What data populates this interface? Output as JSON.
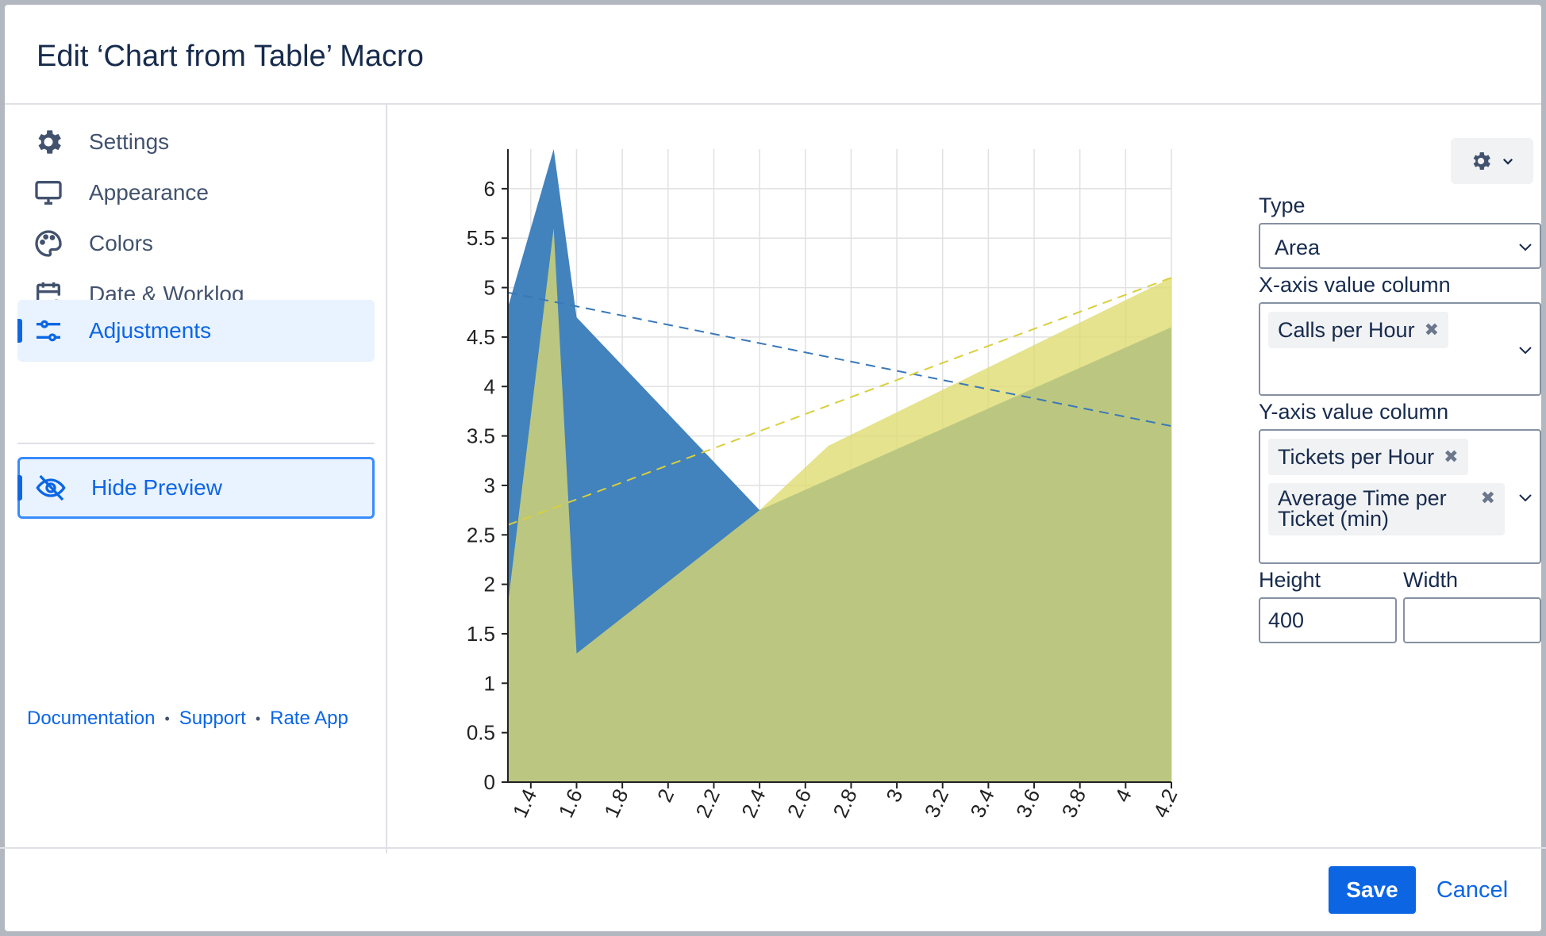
{
  "dialog": {
    "title": "Edit ‘Chart from Table’ Macro"
  },
  "sidebar": {
    "items": [
      {
        "label": "Settings",
        "icon": "gear-icon"
      },
      {
        "label": "Appearance",
        "icon": "monitor-icon"
      },
      {
        "label": "Colors",
        "icon": "palette-icon"
      },
      {
        "label": "Date & Worklog",
        "icon": "calendar-plus-icon"
      },
      {
        "label": "Adjustments",
        "icon": "sliders-icon",
        "active": true
      }
    ],
    "hide_preview": {
      "label": "Hide Preview",
      "icon": "eye-slash-icon"
    },
    "links": [
      "Documentation",
      "Support",
      "Rate App"
    ]
  },
  "panel": {
    "type_label": "Type",
    "type_value": "Area",
    "x_label": "X-axis value column",
    "x_tags": [
      "Calls per Hour"
    ],
    "y_label": "Y-axis value column",
    "y_tags": [
      "Tickets per Hour",
      "Average Time per Ticket (min)"
    ],
    "height_label": "Height",
    "height_value": "400",
    "width_label": "Width",
    "width_value": ""
  },
  "footer": {
    "save_label": "Save",
    "cancel_label": "Cancel"
  },
  "colors": {
    "accent": "#0c66e4",
    "series_blue": "#3e7fbc",
    "series_yellow": "#dedb6e",
    "overlap": "#b8c162"
  },
  "chart_data": {
    "type": "area",
    "xlim": [
      1.3,
      4.2
    ],
    "ylim": [
      0,
      6.4
    ],
    "x_ticks": [
      "1.4",
      "1.6",
      "1.8",
      "2",
      "2.2",
      "2.4",
      "2.6",
      "2.8",
      "3",
      "3.2",
      "3.4",
      "3.6",
      "3.8",
      "4",
      "4.2"
    ],
    "y_ticks": [
      "0",
      "0.5",
      "1",
      "1.5",
      "2",
      "2.5",
      "3",
      "3.5",
      "4",
      "4.5",
      "5",
      "5.5",
      "6"
    ],
    "grid": true,
    "series": [
      {
        "color": "#3e7fbc",
        "points": [
          [
            1.3,
            4.8
          ],
          [
            1.5,
            6.4
          ],
          [
            1.6,
            4.7
          ],
          [
            2.4,
            2.75
          ],
          [
            4.2,
            4.6
          ]
        ],
        "trend": [
          [
            1.3,
            4.95
          ],
          [
            4.2,
            3.6
          ]
        ]
      },
      {
        "color": "#dedb6e",
        "points": [
          [
            1.3,
            1.8
          ],
          [
            1.5,
            5.6
          ],
          [
            1.6,
            1.3
          ],
          [
            2.4,
            2.75
          ],
          [
            2.7,
            3.4
          ],
          [
            4.2,
            5.1
          ]
        ],
        "trend": [
          [
            1.3,
            2.6
          ],
          [
            4.2,
            5.1
          ]
        ]
      }
    ]
  }
}
